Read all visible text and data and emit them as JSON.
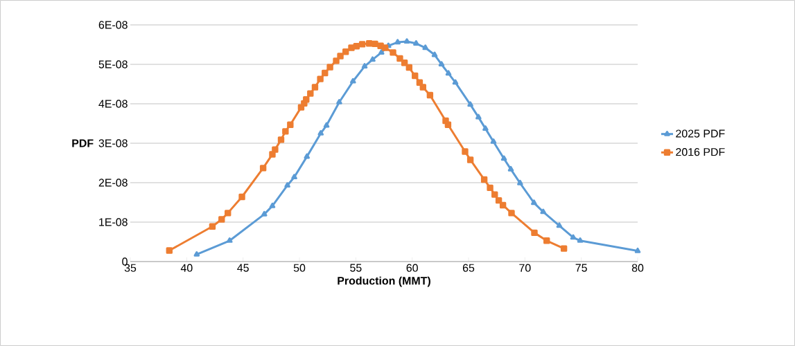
{
  "chart_data": {
    "type": "line",
    "xlabel": "Production (MMT)",
    "ylabel": "PDF",
    "xlim": [
      35,
      80
    ],
    "xticks": [
      35,
      40,
      45,
      50,
      55,
      60,
      65,
      70,
      75,
      80
    ],
    "ylim": [
      0,
      6e-08
    ],
    "yticks": [
      0,
      {
        "value": 1e-08,
        "label": "1E-08"
      },
      {
        "value": 2e-08,
        "label": "2E-08"
      },
      {
        "value": 3e-08,
        "label": "3E-08"
      },
      {
        "value": 4e-08,
        "label": "4E-08"
      },
      {
        "value": 5e-08,
        "label": "5E-08"
      },
      {
        "value": 6e-08,
        "label": "6E-08"
      }
    ],
    "grid": "y",
    "legend": "right",
    "line_style": "solid",
    "series": [
      {
        "name": "2025 PDF",
        "color": "#5b9bd5",
        "marker": "triangle",
        "x": [
          40.89,
          43.81,
          46.88,
          47.6,
          48.93,
          49.54,
          50.66,
          51.89,
          52.4,
          53.53,
          54.75,
          55.78,
          56.49,
          57.27,
          57.89,
          58.71,
          59.53,
          60.35,
          61.17,
          61.99,
          62.6,
          63.22,
          63.83,
          65.16,
          65.88,
          66.5,
          67.21,
          68.14,
          68.75,
          69.57,
          70.8,
          71.62,
          73.05,
          74.28,
          74.9,
          80
        ],
        "values": [
          1.8e-09,
          5.3e-09,
          1.2e-08,
          1.41e-08,
          1.93e-08,
          2.14e-08,
          2.66e-08,
          3.25e-08,
          3.45e-08,
          4.04e-08,
          4.57e-08,
          4.95e-08,
          5.12e-08,
          5.3e-08,
          5.47e-08,
          5.56e-08,
          5.58e-08,
          5.53e-08,
          5.42e-08,
          5.24e-08,
          5e-08,
          4.77e-08,
          4.54e-08,
          3.98e-08,
          3.66e-08,
          3.37e-08,
          3.04e-08,
          2.61e-08,
          2.34e-08,
          1.99e-08,
          1.49e-08,
          1.26e-08,
          9.1e-09,
          6.1e-09,
          5.3e-09,
          2.7e-09
        ]
      },
      {
        "name": "2016 PDF",
        "color": "#ed7d31",
        "marker": "square",
        "x": [
          38.46,
          42.28,
          43.1,
          43.65,
          44.9,
          46.78,
          47.6,
          47.84,
          48.37,
          48.76,
          49.19,
          50.15,
          50.42,
          50.6,
          50.97,
          51.38,
          51.85,
          52.26,
          52.71,
          53.26,
          53.63,
          54.1,
          54.61,
          55.06,
          55.57,
          56.19,
          56.7,
          57.2,
          57.6,
          58.3,
          58.91,
          59.32,
          59.73,
          60.25,
          60.66,
          60.96,
          61.58,
          62.97,
          63.18,
          64.69,
          65.16,
          66.39,
          66.91,
          67.32,
          67.68,
          68.05,
          68.81,
          70.84,
          71.93,
          73.46
        ],
        "values": [
          2.8e-09,
          8.9e-09,
          1.07e-08,
          1.23e-08,
          1.64e-08,
          2.37e-08,
          2.72e-08,
          2.84e-08,
          3.09e-08,
          3.3e-08,
          3.47e-08,
          3.91e-08,
          4.01e-08,
          4.11e-08,
          4.26e-08,
          4.42e-08,
          4.63e-08,
          4.78e-08,
          4.93e-08,
          5.09e-08,
          5.21e-08,
          5.32e-08,
          5.42e-08,
          5.46e-08,
          5.51e-08,
          5.53e-08,
          5.52e-08,
          5.47e-08,
          5.42e-08,
          5.3e-08,
          5.15e-08,
          5.04e-08,
          4.92e-08,
          4.71e-08,
          4.54e-08,
          4.42e-08,
          4.22e-08,
          3.57e-08,
          3.47e-08,
          2.79e-08,
          2.58e-08,
          2.08e-08,
          1.87e-08,
          1.7e-08,
          1.55e-08,
          1.43e-08,
          1.23e-08,
          7.3e-09,
          5.3e-09,
          3.3e-09
        ]
      }
    ]
  }
}
